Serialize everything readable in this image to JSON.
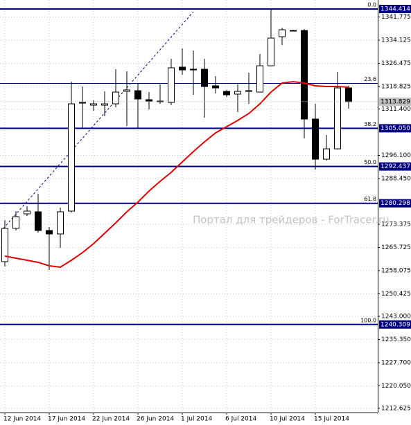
{
  "chart_data": {
    "type": "candlestick",
    "watermark": "Портал для трейдеров - ForTracer.ru",
    "categories": [
      "12 Jun 2014",
      null,
      null,
      null,
      "17 Jun 2014",
      null,
      null,
      null,
      "22 Jun 2014",
      null,
      null,
      null,
      "26 Jun 2014",
      null,
      null,
      null,
      "1 Jul 2014",
      null,
      null,
      null,
      "6 Jul 2014",
      null,
      null,
      null,
      "10 Jul 2014",
      null,
      null,
      null,
      "15 Jul 2014",
      null,
      null,
      null
    ],
    "open": [
      1261.04,
      1272.01,
      1276.8,
      1277.49,
      1271.32,
      1270.18,
      1277.72,
      1313.35,
      1312.66,
      1312.66,
      1313.12,
      1317.23,
      1317.46,
      1314.49,
      1314.03,
      1313.58,
      1325.23,
      1324.54,
      1324.54,
      1319.06,
      1317.23,
      1316.32,
      1317.23,
      1317.0,
      1325.68,
      1335.27,
      1337.33,
      1337.33,
      1308.1,
      1294.85,
      1298.27,
      1318.37
    ],
    "high": [
      1274.75,
      1277.72,
      1279.32,
      1283.43,
      1272.46,
      1278.86,
      1320.43,
      1318.83,
      1314.26,
      1317.23,
      1324.54,
      1323.85,
      1319.97,
      1317.0,
      1319.52,
      1327.97,
      1331.39,
      1330.71,
      1327.97,
      1322.26,
      1317.69,
      1319.52,
      1323.4,
      1329.56,
      1344.41,
      1338.24,
      1337.56,
      1337.79,
      1313.12,
      1302.84,
      1323.63,
      1319.06
    ],
    "low": [
      1259.45,
      1271.32,
      1276.12,
      1270.64,
      1258.3,
      1265.61,
      1277.26,
      1305.13,
      1310.84,
      1309.01,
      1311.98,
      1305.81,
      1305.13,
      1311.29,
      1313.12,
      1312.66,
      1322.71,
      1316.09,
      1308.55,
      1316.55,
      1315.4,
      1310.38,
      1313.12,
      1317.0,
      1325.68,
      1332.53,
      1337.1,
      1301.7,
      1291.42,
      1294.39,
      1298.05,
      1311.52
    ],
    "close": [
      1272.01,
      1275.89,
      1277.72,
      1271.32,
      1270.18,
      1277.49,
      1313.12,
      1313.58,
      1313.12,
      1313.12,
      1317.0,
      1317.69,
      1314.72,
      1314.03,
      1313.81,
      1325.0,
      1324.31,
      1324.31,
      1318.83,
      1318.37,
      1316.09,
      1317.23,
      1317.46,
      1325.68,
      1334.82,
      1337.56,
      1337.33,
      1308.1,
      1294.85,
      1298.27,
      1318.37,
      1313.829
    ],
    "up_color": "#ffffff",
    "down_color": "#000000",
    "moving_average": {
      "color": "#e00000",
      "values": [
        1262.87,
        1262.19,
        1261.5,
        1260.82,
        1259.67,
        1259.22,
        1261.5,
        1264.01,
        1266.98,
        1270.41,
        1273.84,
        1277.49,
        1280.69,
        1284.34,
        1287.54,
        1290.51,
        1293.93,
        1297.36,
        1300.56,
        1303.53,
        1305.58,
        1307.64,
        1309.92,
        1313.12,
        1317.0,
        1319.97,
        1320.43,
        1319.97,
        1319.06,
        1318.83,
        1318.83,
        1318.6
      ]
    },
    "trendline": {
      "color": "#000080",
      "start": [
        0,
        1272.01
      ],
      "end": [
        17,
        1343.5
      ]
    },
    "fib_levels": {
      "color": "#000080",
      "labels": [
        "0.0",
        "23.6",
        "38.2",
        "50.0",
        "61.8",
        "100.0"
      ],
      "values": [
        1344.414,
        1319.85,
        1305.05,
        1292.437,
        1280.298,
        1240.309
      ],
      "value_labels": [
        "1344.414",
        null,
        "1305.050",
        "1292.437",
        "1280.298",
        "1240.309"
      ]
    },
    "last_price": 1313.829,
    "ylim": [
      1211.25,
      1347.38
    ],
    "yticks": [
      1341.775,
      1334.125,
      1326.475,
      1318.825,
      {
        "value": 1311.4,
        "label": "1311.400"
      },
      {
        "value": 1296.1,
        "label": "1296.100"
      },
      {
        "value": 1288.45,
        "label": "1288.450"
      },
      1273.375,
      1265.725,
      1258.075,
      1250.425,
      {
        "value": 1243.0,
        "label": "1243.000"
      },
      {
        "value": 1235.35,
        "label": "1235.350"
      },
      {
        "value": 1227.7,
        "label": "1227.700"
      },
      {
        "value": 1220.05,
        "label": "1220.050"
      },
      1212.625
    ],
    "grid": true
  }
}
